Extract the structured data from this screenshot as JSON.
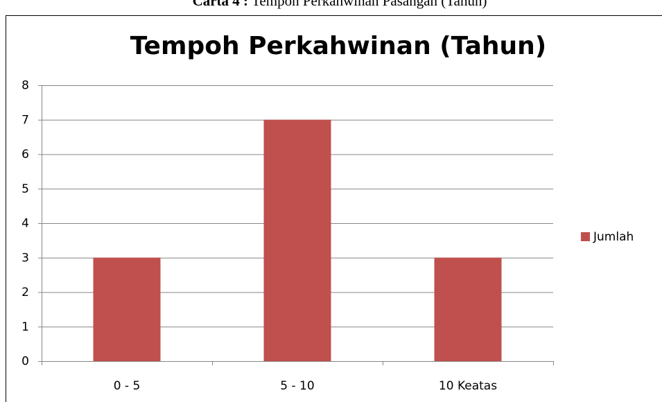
{
  "caption_label": "Carta 4 :",
  "caption": "Tempoh Perkahwinan Pasangan (Tahun)",
  "chart_data": {
    "type": "bar",
    "title": "Tempoh Perkahwinan (Tahun)",
    "categories": [
      "0 - 5",
      "5 - 10",
      "10 Keatas"
    ],
    "series": [
      {
        "name": "Jumlah",
        "color": "#c0504d",
        "values": [
          3,
          7,
          3
        ]
      }
    ],
    "ylim": [
      0,
      8
    ],
    "yticks": [
      0,
      1,
      2,
      3,
      4,
      5,
      6,
      7,
      8
    ],
    "grid": true,
    "legend": "right"
  }
}
